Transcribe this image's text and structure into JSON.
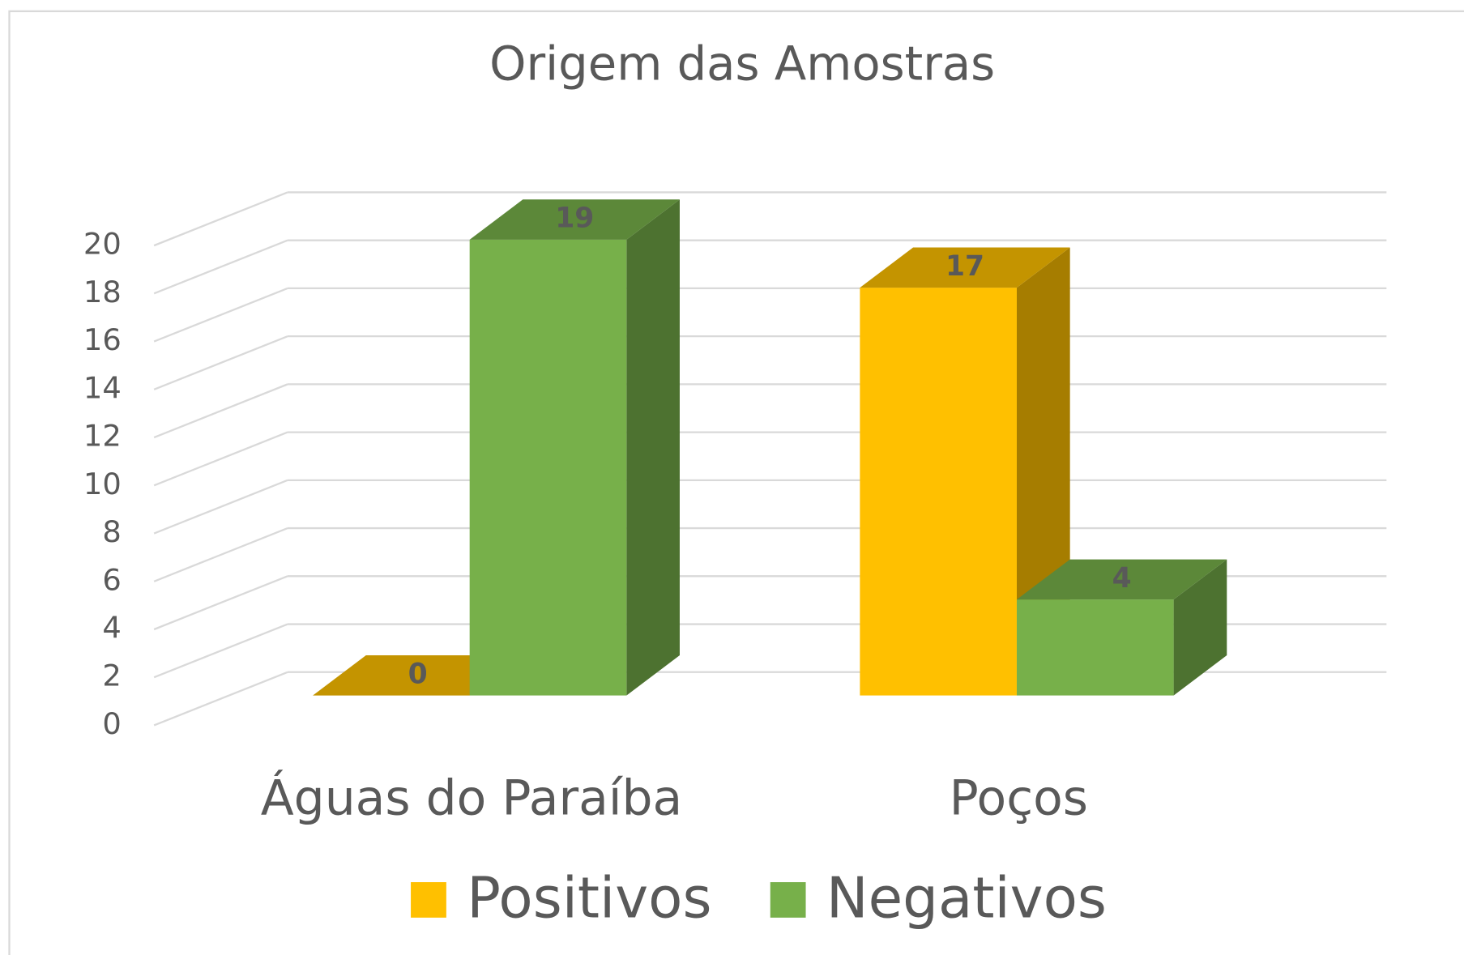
{
  "chart_data": {
    "type": "bar3d",
    "title": "Origem das Amostras",
    "categories": [
      "Águas do Paraíba",
      "Poços"
    ],
    "series": [
      {
        "name": "Positivos",
        "color": "#ffc000",
        "values": [
          0,
          17
        ]
      },
      {
        "name": "Negativos",
        "color": "#77b04a",
        "values": [
          19,
          4
        ]
      }
    ],
    "ylim": [
      0,
      20
    ],
    "yticks": [
      0,
      2,
      4,
      6,
      8,
      10,
      12,
      14,
      16,
      18,
      20
    ],
    "grid": true,
    "legend": "bottom"
  }
}
